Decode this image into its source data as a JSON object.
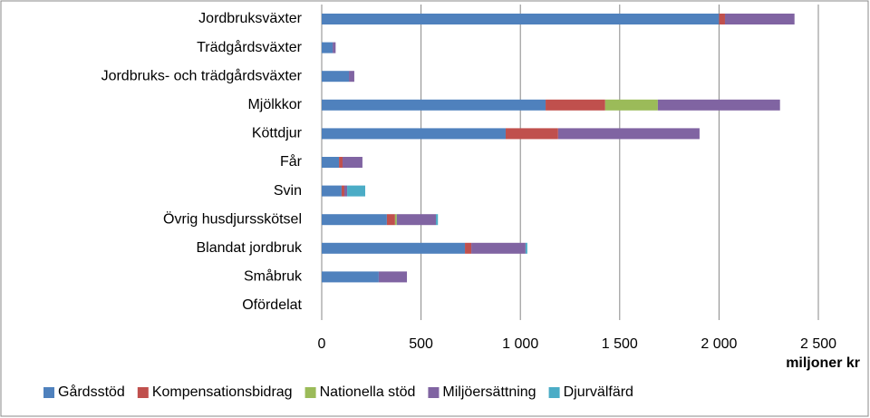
{
  "chart_data": {
    "type": "bar",
    "orientation": "horizontal",
    "stacked": true,
    "categories": [
      "Jordbruksväxter",
      "Trädgårdsväxter",
      "Jordbruks- och trädgårdsväxter",
      "Mjölkkor",
      "Köttdjur",
      "Får",
      "Svin",
      "Övrig husdjursskötsel",
      "Blandat jordbruk",
      "Småbruk",
      "Ofördelat"
    ],
    "series": [
      {
        "name": "Gårdsstöd",
        "color": "#4f81bd",
        "values": [
          2000,
          55,
          137,
          1127,
          926,
          87,
          100,
          328,
          721,
          287,
          0
        ]
      },
      {
        "name": "Kompensationsbidrag",
        "color": "#c0504d",
        "values": [
          30,
          0,
          0,
          300,
          264,
          18,
          14,
          41,
          32,
          0,
          0
        ]
      },
      {
        "name": "Nationella stöd",
        "color": "#9bbb59",
        "values": [
          0,
          0,
          0,
          265,
          0,
          0,
          0,
          9,
          0,
          0,
          0
        ]
      },
      {
        "name": "Miljöersättning",
        "color": "#8064a2",
        "values": [
          350,
          15,
          27,
          615,
          712,
          100,
          14,
          197,
          273,
          142,
          0
        ]
      },
      {
        "name": "Djurvälfärd",
        "color": "#4bacc6",
        "values": [
          0,
          0,
          0,
          0,
          0,
          0,
          91,
          10,
          9,
          0,
          0
        ]
      }
    ],
    "xlabel": "miljoner kr",
    "xlim": [
      0,
      2500
    ],
    "xticks": [
      0,
      500,
      {
        "value": 1000,
        "label": "1 000"
      },
      {
        "value": 1500,
        "label": "1 500"
      },
      {
        "value": 2000,
        "label": "2 000"
      },
      {
        "value": 2500,
        "label": "2 500"
      }
    ],
    "grid": true,
    "legend": "bottom"
  }
}
